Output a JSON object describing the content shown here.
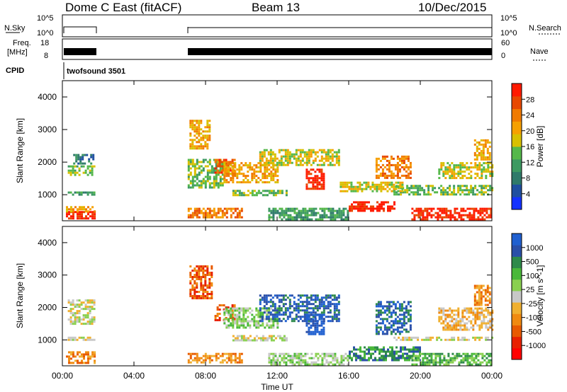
{
  "header": {
    "title_left": "Dome C East (fitACF)",
    "title_center": "Beam 13",
    "title_right": "10/Dec/2015"
  },
  "status_panels": {
    "nsky_label": "N.Sky",
    "nsearch_label": "N.Search",
    "nsky_ticks": [
      "10^5",
      "10^0"
    ],
    "nsearch_ticks": [
      "10^5",
      "10^0"
    ],
    "freq_label_1": "Freq.",
    "freq_label_2": "[MHz]",
    "freq_ticks": [
      "18",
      "8"
    ],
    "nave_label": "Nave",
    "nave_ticks": [
      "60",
      "0"
    ],
    "cpid_label": "CPID",
    "cpid_value": "twofsound 3501"
  },
  "colors": {
    "power_scale": [
      "#1432ff",
      "#1f4fa0",
      "#2f7a6a",
      "#3d9a62",
      "#55b84a",
      "#d8c000",
      "#f6a000",
      "#f07a00",
      "#e84800",
      "#ff1a00"
    ],
    "velocity_scale": [
      "#2060d0",
      "#2a4fa8",
      "#2e8a4a",
      "#4ab83a",
      "#8ad050",
      "#c8c8c8",
      "#f0b030",
      "#f08a10",
      "#e85a00",
      "#e82000",
      "#ff0000"
    ]
  },
  "chart_data": [
    {
      "type": "heatmap",
      "name": "power",
      "xlabel": "",
      "ylabel": "Slant Range [km]",
      "x_ticks": [
        "00:00",
        "04:00",
        "08:00",
        "12:00",
        "16:00",
        "20:00",
        "00:00"
      ],
      "y_ticks": [
        1000,
        2000,
        3000,
        4000
      ],
      "ylim": [
        200,
        4500
      ],
      "colorbar": {
        "label": "Power [dB]",
        "ticks": [
          4,
          8,
          12,
          16,
          20,
          24,
          28
        ]
      },
      "bands": [
        {
          "t0": 0.2,
          "t1": 1.8,
          "r0": 300,
          "r1": 500,
          "level": 9
        },
        {
          "t0": 0.2,
          "t1": 1.8,
          "r0": 500,
          "r1": 650,
          "level": 6
        },
        {
          "t0": 0.3,
          "t1": 1.8,
          "r0": 1000,
          "r1": 1100,
          "level": 3
        },
        {
          "t0": 0.3,
          "t1": 1.8,
          "r0": 1600,
          "r1": 1900,
          "level": 4
        },
        {
          "t0": 0.6,
          "t1": 1.7,
          "r0": 1950,
          "r1": 2250,
          "level": 2
        },
        {
          "t0": 7.0,
          "t1": 10.0,
          "r0": 300,
          "r1": 600,
          "level": 7
        },
        {
          "t0": 7.0,
          "t1": 9.0,
          "r0": 1200,
          "r1": 2100,
          "level": 4
        },
        {
          "t0": 7.1,
          "t1": 8.2,
          "r0": 2400,
          "r1": 3300,
          "level": 6
        },
        {
          "t0": 8.5,
          "t1": 9.6,
          "r0": 1600,
          "r1": 2100,
          "level": 8
        },
        {
          "t0": 9.0,
          "t1": 12.0,
          "r0": 1400,
          "r1": 2000,
          "level": 6
        },
        {
          "t0": 11.0,
          "t1": 15.5,
          "r0": 1900,
          "r1": 2400,
          "level": 5
        },
        {
          "t0": 13.6,
          "t1": 14.6,
          "r0": 1200,
          "r1": 1800,
          "level": 9
        },
        {
          "t0": 11.5,
          "t1": 16.0,
          "r0": 250,
          "r1": 600,
          "level": 3
        },
        {
          "t0": 16.0,
          "t1": 18.5,
          "r0": 500,
          "r1": 800,
          "level": 9
        },
        {
          "t0": 17.5,
          "t1": 19.5,
          "r0": 1500,
          "r1": 2200,
          "level": 7
        },
        {
          "t0": 19.5,
          "t1": 24.0,
          "r0": 250,
          "r1": 600,
          "level": 9
        },
        {
          "t0": 18.5,
          "t1": 24.0,
          "r0": 1000,
          "r1": 1300,
          "level": 4
        },
        {
          "t0": 21.0,
          "t1": 24.0,
          "r0": 1500,
          "r1": 2000,
          "level": 5
        },
        {
          "t0": 23.0,
          "t1": 23.9,
          "r0": 2100,
          "r1": 2700,
          "level": 6
        },
        {
          "t0": 9.5,
          "t1": 12.5,
          "r0": 1000,
          "r1": 1150,
          "level": 4
        },
        {
          "t0": 15.5,
          "t1": 19.0,
          "r0": 1100,
          "r1": 1400,
          "level": 5
        }
      ]
    },
    {
      "type": "heatmap",
      "name": "velocity",
      "xlabel": "Time UT",
      "ylabel": "Slant Range [km]",
      "x_ticks": [
        "00:00",
        "04:00",
        "08:00",
        "12:00",
        "16:00",
        "20:00",
        "00:00"
      ],
      "y_ticks": [
        1000,
        2000,
        3000,
        4000
      ],
      "ylim": [
        200,
        4500
      ],
      "colorbar": {
        "label": "Velocity [m s^-1]",
        "ticks": [
          "1000",
          "500",
          "100",
          "25",
          "-25",
          "-100",
          "-500",
          "-1000"
        ]
      },
      "bands": [
        {
          "t0": 0.2,
          "t1": 1.8,
          "r0": 300,
          "r1": 650,
          "level": 7
        },
        {
          "t0": 0.3,
          "t1": 1.8,
          "r0": 1000,
          "r1": 1100,
          "level": 5
        },
        {
          "t0": 0.3,
          "t1": 1.8,
          "r0": 1500,
          "r1": 2250,
          "level": 5
        },
        {
          "t0": 7.0,
          "t1": 10.0,
          "r0": 300,
          "r1": 600,
          "level": 7
        },
        {
          "t0": 7.1,
          "t1": 8.3,
          "r0": 2300,
          "r1": 3300,
          "level": 8
        },
        {
          "t0": 8.5,
          "t1": 9.6,
          "r0": 1600,
          "r1": 2100,
          "level": 8
        },
        {
          "t0": 9.0,
          "t1": 12.0,
          "r0": 1400,
          "r1": 2000,
          "level": 4
        },
        {
          "t0": 11.0,
          "t1": 15.5,
          "r0": 1600,
          "r1": 2400,
          "level": 1
        },
        {
          "t0": 13.6,
          "t1": 14.6,
          "r0": 1200,
          "r1": 1800,
          "level": 0
        },
        {
          "t0": 11.5,
          "t1": 16.0,
          "r0": 250,
          "r1": 600,
          "level": 4
        },
        {
          "t0": 16.0,
          "t1": 20.0,
          "r0": 400,
          "r1": 800,
          "level": 2
        },
        {
          "t0": 17.5,
          "t1": 19.5,
          "r0": 1200,
          "r1": 2200,
          "level": 1
        },
        {
          "t0": 19.5,
          "t1": 24.0,
          "r0": 250,
          "r1": 600,
          "level": 3
        },
        {
          "t0": 18.5,
          "t1": 24.0,
          "r0": 1000,
          "r1": 1100,
          "level": 5
        },
        {
          "t0": 21.0,
          "t1": 24.0,
          "r0": 1300,
          "r1": 2000,
          "level": 6
        },
        {
          "t0": 23.0,
          "t1": 23.9,
          "r0": 2100,
          "r1": 2700,
          "level": 7
        },
        {
          "t0": 9.5,
          "t1": 12.5,
          "r0": 1000,
          "r1": 1150,
          "level": 5
        }
      ]
    }
  ]
}
